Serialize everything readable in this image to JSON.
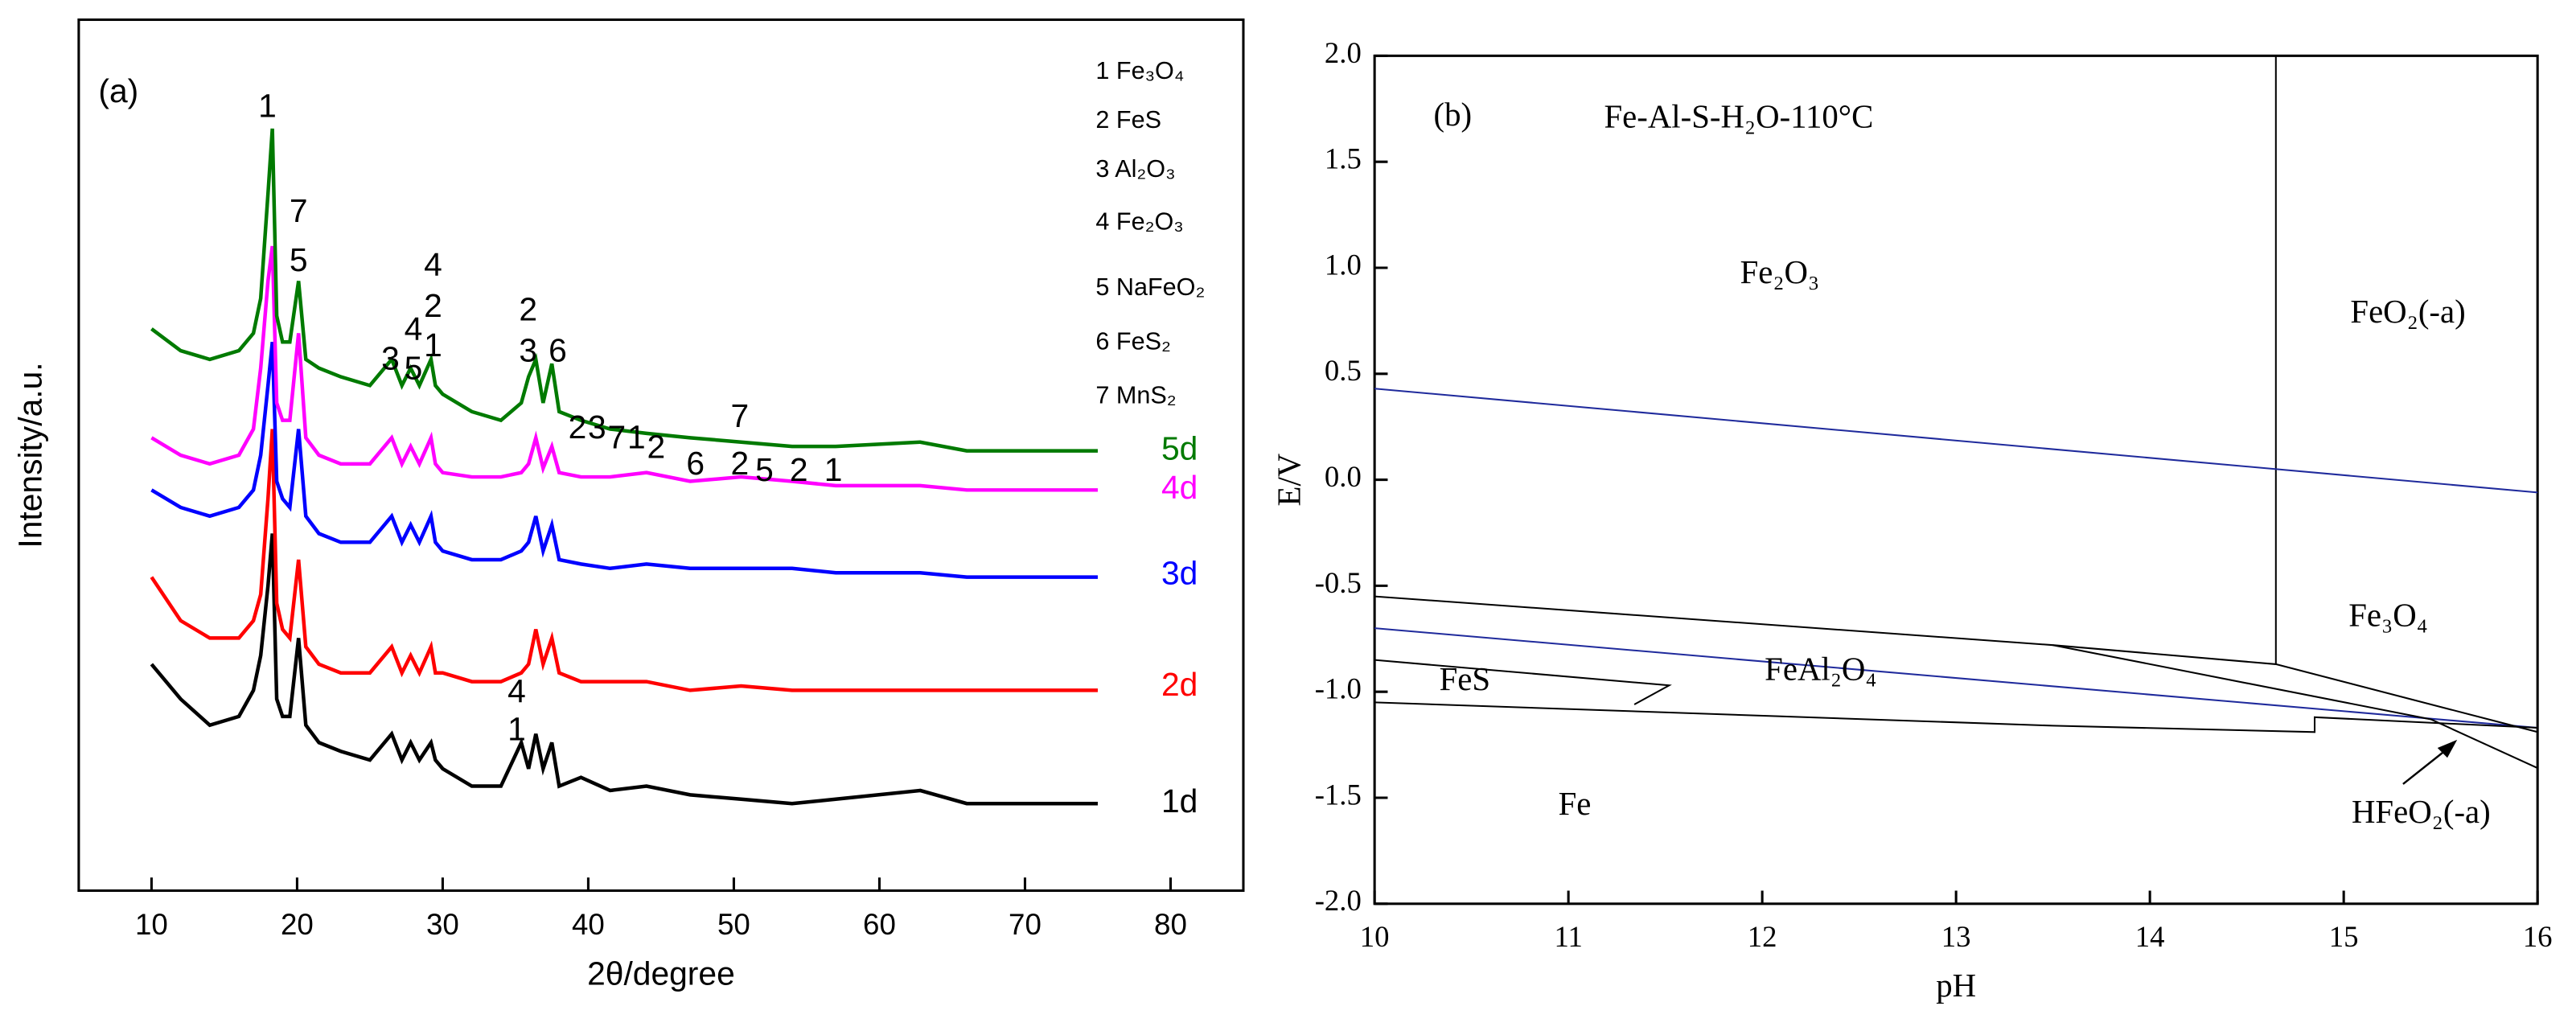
{
  "chart_data": [
    {
      "type": "line",
      "label": "(a)",
      "xlabel": "2θ/degree",
      "ylabel": "Intensity/a.u.",
      "xlim": [
        5,
        85
      ],
      "xticks": [
        10,
        20,
        30,
        40,
        50,
        60,
        70,
        80
      ],
      "ylim": [
        0,
        100
      ],
      "x": [
        10,
        12,
        14,
        16,
        17,
        17.5,
        18,
        18.3,
        18.6,
        19,
        19.5,
        20.1,
        20.6,
        21.5,
        23,
        25,
        26.5,
        27.2,
        27.8,
        28.4,
        29.2,
        29.5,
        30,
        32,
        34,
        35.4,
        35.9,
        36.4,
        36.9,
        37.5,
        38,
        39.5,
        41.5,
        44,
        47,
        50.5,
        54,
        57,
        62.8,
        66,
        70,
        75
      ],
      "series": [
        {
          "name": "1d",
          "color": "#000000",
          "values": [
            26,
            22,
            19,
            20,
            23,
            27,
            35,
            41,
            22,
            20,
            20,
            29,
            19,
            17,
            16,
            15,
            18,
            15,
            17,
            15,
            17,
            15,
            14,
            12,
            12,
            17,
            14,
            18,
            14,
            17,
            12,
            13,
            11.5,
            12,
            11,
            10.5,
            10,
            10.5,
            11.5,
            10,
            10,
            10
          ]
        },
        {
          "name": "2d",
          "color": "#ff0000",
          "values": [
            36,
            31,
            29,
            29,
            31,
            34,
            45,
            53,
            33,
            30,
            29,
            38,
            28,
            26,
            25,
            25,
            28,
            25,
            27,
            25,
            28,
            25,
            25,
            24,
            24,
            25,
            26,
            30,
            26,
            29,
            25,
            24,
            24,
            24,
            23,
            23.5,
            23,
            23,
            23,
            23,
            23,
            23
          ]
        },
        {
          "name": "3d",
          "color": "#0000ff",
          "values": [
            46,
            44,
            43,
            44,
            46,
            50,
            58,
            63,
            47,
            45,
            44,
            53,
            43,
            41,
            40,
            40,
            43,
            40,
            42,
            40,
            43,
            40,
            39,
            38,
            38,
            39,
            40,
            43,
            39,
            42,
            38,
            37.5,
            37,
            37.5,
            37,
            37,
            37,
            36.5,
            36.5,
            36,
            36,
            36
          ]
        },
        {
          "name": "4d",
          "color": "#ff00ff",
          "values": [
            52,
            50,
            49,
            50,
            53,
            60,
            70,
            74,
            56,
            54,
            54,
            64,
            52,
            50,
            49,
            49,
            52,
            49,
            51,
            49,
            52,
            49,
            48,
            47.5,
            47.5,
            48,
            49,
            52,
            48.5,
            51,
            48,
            47.5,
            47.5,
            48,
            47,
            47.5,
            47,
            46.5,
            46.5,
            46,
            46,
            46
          ]
        },
        {
          "name": "5d",
          "color": "#007a00",
          "values": [
            64.5,
            62,
            61,
            62,
            64,
            68,
            80,
            87.5,
            66,
            63,
            63,
            70,
            61,
            60,
            59,
            58,
            61,
            58,
            60,
            58,
            61,
            58,
            57,
            55,
            54,
            56,
            59,
            61,
            56,
            60.5,
            55,
            54,
            53,
            52.5,
            52,
            51.5,
            51,
            51,
            51.5,
            50.5,
            50.5,
            50.5
          ]
        }
      ],
      "phases": [
        "1 Fe₃O₄",
        "2 FeS",
        "3 Al₂O₃",
        "4 Fe₂O₃",
        "5 NaFeO₂",
        "6 FeS₂",
        "7 MnS₂"
      ],
      "peak_labels": [
        "1",
        "7",
        "5",
        "4",
        "2",
        "1",
        "3",
        "4",
        "5",
        "2",
        "3",
        "6",
        "2",
        "3",
        "7",
        "1",
        "2",
        "6",
        "7",
        "2",
        "5",
        "2",
        "1",
        "4",
        "1"
      ]
    },
    {
      "type": "line",
      "label": "(b)",
      "xlabel": "pH",
      "ylabel": "E/V",
      "system": "Fe-Al-S-H₂O-110°C",
      "xlim": [
        10,
        16
      ],
      "xticks": [
        10,
        11,
        12,
        13,
        14,
        15,
        16
      ],
      "ylim": [
        -2,
        2
      ],
      "yticks": [
        {
          "value": 2,
          "label": "2.0"
        },
        1.5,
        {
          "value": 1,
          "label": "1.0"
        },
        0.5,
        {
          "value": 0,
          "label": "0.0"
        },
        -0.5,
        {
          "value": -1,
          "label": "-1.0"
        },
        -1.5,
        {
          "value": -2,
          "label": "-2.0"
        }
      ],
      "series": [
        {
          "color": "#000000",
          "x": [
            14.65,
            14.65
          ],
          "values": [
            2,
            -0.87
          ]
        },
        {
          "color": "#1f2a9c",
          "x": [
            10,
            16
          ],
          "values": [
            0.43,
            -0.06
          ]
        },
        {
          "color": "#1f2a9c",
          "x": [
            10,
            16
          ],
          "values": [
            -0.7,
            -1.17
          ]
        },
        {
          "color": "#000000",
          "x": [
            10,
            13.5,
            14.65,
            16
          ],
          "values": [
            -0.55,
            -0.78,
            -0.87,
            -1.19
          ]
        },
        {
          "color": "#000000",
          "x": [
            13.5,
            15.45,
            16
          ],
          "values": [
            -0.78,
            -1.13,
            -1.36
          ]
        },
        {
          "color": "#000000",
          "x": [
            10,
            11.52,
            11.34
          ],
          "values": [
            -0.85,
            -0.97,
            -1.06
          ]
        },
        {
          "color": "#000000",
          "x": [
            10,
            13.5,
            14.85,
            14.85,
            16
          ],
          "values": [
            -1.05,
            -1.16,
            -1.19,
            -1.12,
            -1.17
          ]
        }
      ],
      "regions": [
        "Fe₂O₃",
        "FeO₂(-a)",
        "Fe₃O₄",
        "FeAl₂O₄",
        "FeS",
        "Fe",
        "HFeO₂(-a)"
      ]
    }
  ]
}
